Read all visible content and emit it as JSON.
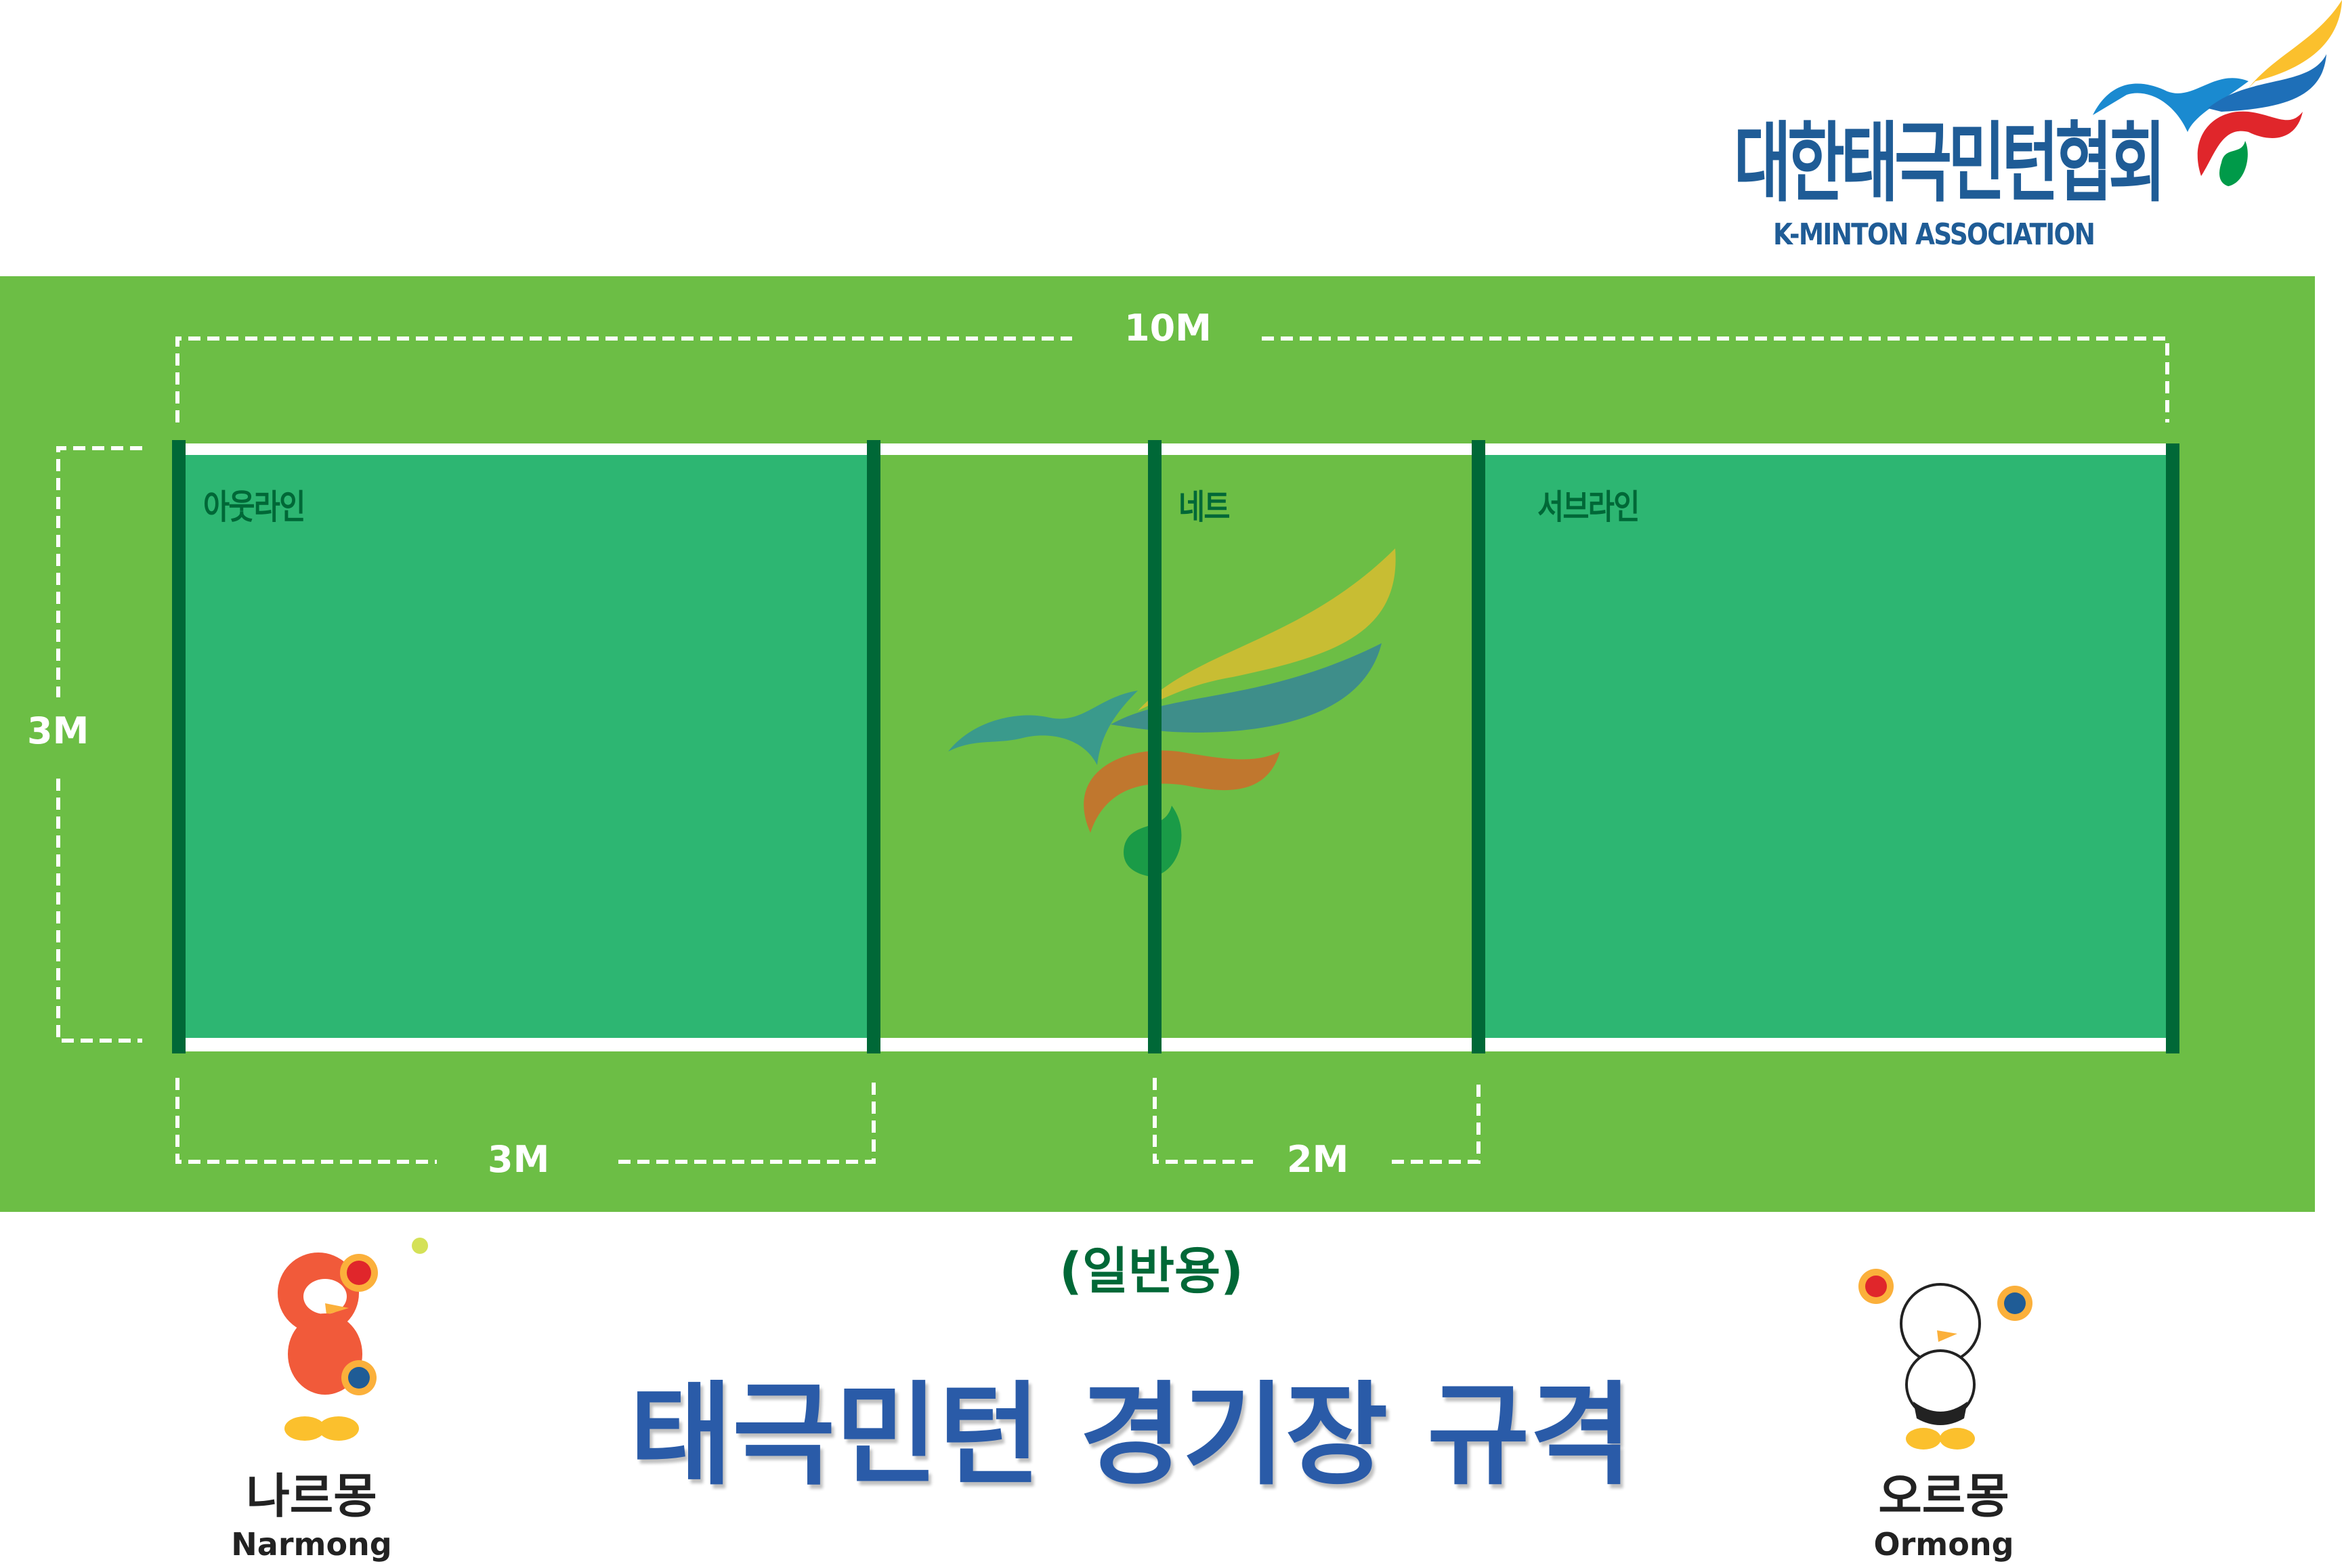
{
  "logo": {
    "name_ko": "대한태극민턴협회",
    "name_en": "K-MINTON ASSOCIATION"
  },
  "court": {
    "dimensions": {
      "length": "10M",
      "width": "3M",
      "outer_zone": "3M",
      "center_zone": "2M"
    },
    "labels": {
      "out_line": "아웃라인",
      "net": "네트",
      "serve_line": "서브라인"
    },
    "colors": {
      "background": "#6cbe45",
      "court": "#2db672",
      "lines": "#006837",
      "boundary": "#ffffff"
    }
  },
  "subtitle": "(일반용)",
  "title": "태극민턴 경기장 규격",
  "mascots": [
    {
      "name_ko": "나르몽",
      "name_en": "Narmong"
    },
    {
      "name_ko": "오르몽",
      "name_en": "Ormong"
    }
  ]
}
